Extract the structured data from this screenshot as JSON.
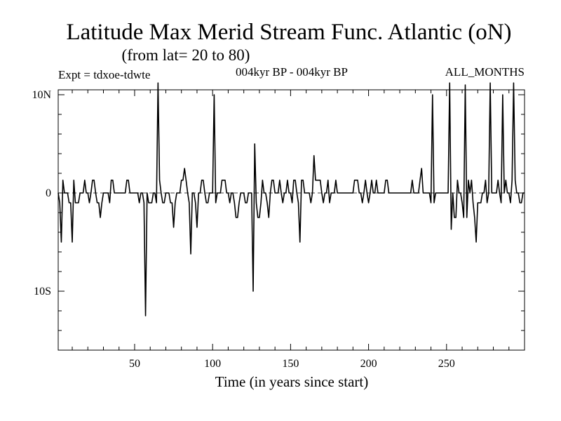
{
  "chart_data": {
    "type": "line",
    "title": "Latitude Max Merid Stream Func. Atlantic (oN)",
    "subtitle": "(from lat= 20 to 80)",
    "expt_label": "Expt = tdxoe-tdwte",
    "period_label": "004kyr BP - 004kyr BP",
    "months_label": "ALL_MONTHS",
    "xlabel": "Time (in years since start)",
    "ylabel": "",
    "xlim": [
      1,
      300
    ],
    "ylim": [
      -16,
      10.5
    ],
    "x_ticks": [
      {
        "value": 50,
        "label": "50"
      },
      {
        "value": 100,
        "label": "100"
      },
      {
        "value": 150,
        "label": "150"
      },
      {
        "value": 200,
        "label": "200"
      },
      {
        "value": 250,
        "label": "250"
      }
    ],
    "y_ticks": [
      {
        "value": 10,
        "label": "10N"
      },
      {
        "value": 0,
        "label": "0"
      },
      {
        "value": -10,
        "label": "10S"
      }
    ],
    "series": [
      {
        "name": "Latitude max",
        "points": [
          [
            1,
            0
          ],
          [
            2,
            -1
          ],
          [
            3,
            -5
          ],
          [
            4,
            1.3
          ],
          [
            5,
            0
          ],
          [
            6,
            0
          ],
          [
            7,
            0
          ],
          [
            8,
            -1
          ],
          [
            9,
            -1
          ],
          [
            10,
            -5
          ],
          [
            11,
            1.3
          ],
          [
            12,
            -1
          ],
          [
            13,
            -1
          ],
          [
            14,
            -1
          ],
          [
            15,
            0
          ],
          [
            16,
            0
          ],
          [
            17,
            0
          ],
          [
            18,
            1.3
          ],
          [
            19,
            0
          ],
          [
            20,
            0
          ],
          [
            21,
            -1
          ],
          [
            22,
            0
          ],
          [
            23,
            1.3
          ],
          [
            24,
            1.3
          ],
          [
            25,
            0
          ],
          [
            26,
            -1
          ],
          [
            27,
            -1
          ],
          [
            28,
            -2.5
          ],
          [
            29,
            -1
          ],
          [
            30,
            0
          ],
          [
            31,
            0
          ],
          [
            32,
            0
          ],
          [
            33,
            0
          ],
          [
            34,
            -1
          ],
          [
            35,
            1.3
          ],
          [
            36,
            1.3
          ],
          [
            37,
            0
          ],
          [
            38,
            0
          ],
          [
            39,
            0
          ],
          [
            40,
            0
          ],
          [
            41,
            0
          ],
          [
            42,
            0
          ],
          [
            43,
            0
          ],
          [
            44,
            0
          ],
          [
            45,
            1.3
          ],
          [
            46,
            1.3
          ],
          [
            47,
            0
          ],
          [
            48,
            0
          ],
          [
            49,
            0
          ],
          [
            50,
            0
          ],
          [
            51,
            0
          ],
          [
            52,
            0
          ],
          [
            53,
            -1
          ],
          [
            54,
            0
          ],
          [
            55,
            0
          ],
          [
            56,
            -1
          ],
          [
            57,
            -12.5
          ],
          [
            58,
            0
          ],
          [
            59,
            -1
          ],
          [
            60,
            -1
          ],
          [
            61,
            -1
          ],
          [
            62,
            0
          ],
          [
            63,
            0
          ],
          [
            64,
            -1
          ],
          [
            65,
            11.2
          ],
          [
            66,
            1.3
          ],
          [
            67,
            0
          ],
          [
            68,
            -1
          ],
          [
            69,
            -1
          ],
          [
            70,
            0
          ],
          [
            71,
            0
          ],
          [
            72,
            0
          ],
          [
            73,
            -1
          ],
          [
            74,
            -1
          ],
          [
            75,
            -3.5
          ],
          [
            76,
            -1
          ],
          [
            77,
            0
          ],
          [
            78,
            0
          ],
          [
            79,
            0
          ],
          [
            80,
            1.3
          ],
          [
            81,
            1.3
          ],
          [
            82,
            2.5
          ],
          [
            83,
            1.3
          ],
          [
            84,
            0
          ],
          [
            85,
            -1
          ],
          [
            86,
            -6.2
          ],
          [
            87,
            0
          ],
          [
            88,
            0
          ],
          [
            89,
            -1
          ],
          [
            90,
            -3.5
          ],
          [
            91,
            0
          ],
          [
            92,
            0
          ],
          [
            93,
            1.3
          ],
          [
            94,
            1.3
          ],
          [
            95,
            0
          ],
          [
            96,
            -1
          ],
          [
            97,
            -1
          ],
          [
            98,
            0
          ],
          [
            99,
            0
          ],
          [
            100,
            0
          ],
          [
            101,
            10
          ],
          [
            102,
            -1
          ],
          [
            103,
            0
          ],
          [
            104,
            0
          ],
          [
            105,
            0
          ],
          [
            106,
            1.3
          ],
          [
            107,
            1.3
          ],
          [
            108,
            1.3
          ],
          [
            109,
            0
          ],
          [
            110,
            0
          ],
          [
            111,
            -1
          ],
          [
            112,
            0
          ],
          [
            113,
            0
          ],
          [
            114,
            -1
          ],
          [
            115,
            -2.5
          ],
          [
            116,
            -2.5
          ],
          [
            117,
            -1
          ],
          [
            118,
            0
          ],
          [
            119,
            0
          ],
          [
            120,
            0
          ],
          [
            121,
            -1
          ],
          [
            122,
            -1
          ],
          [
            123,
            0
          ],
          [
            124,
            0
          ],
          [
            125,
            0
          ],
          [
            126,
            -10
          ],
          [
            127,
            5
          ],
          [
            128,
            -1
          ],
          [
            129,
            -2.5
          ],
          [
            130,
            -2.5
          ],
          [
            131,
            -1
          ],
          [
            132,
            1.3
          ],
          [
            133,
            0
          ],
          [
            134,
            0
          ],
          [
            135,
            -1
          ],
          [
            136,
            -2.5
          ],
          [
            137,
            0
          ],
          [
            138,
            1.3
          ],
          [
            139,
            1.3
          ],
          [
            140,
            0
          ],
          [
            141,
            0
          ],
          [
            142,
            0
          ],
          [
            143,
            1.3
          ],
          [
            144,
            0
          ],
          [
            145,
            -1
          ],
          [
            146,
            0
          ],
          [
            147,
            0
          ],
          [
            148,
            1.3
          ],
          [
            149,
            0
          ],
          [
            150,
            0
          ],
          [
            151,
            -1
          ],
          [
            152,
            1.3
          ],
          [
            153,
            1.3
          ],
          [
            154,
            0
          ],
          [
            155,
            -1
          ],
          [
            156,
            -5
          ],
          [
            157,
            1.3
          ],
          [
            158,
            1.3
          ],
          [
            159,
            0
          ],
          [
            160,
            0
          ],
          [
            161,
            0
          ],
          [
            162,
            0
          ],
          [
            163,
            -1
          ],
          [
            164,
            0
          ],
          [
            165,
            3.8
          ],
          [
            166,
            1.3
          ],
          [
            167,
            1.3
          ],
          [
            168,
            1.3
          ],
          [
            169,
            1.3
          ],
          [
            170,
            0
          ],
          [
            171,
            -1
          ],
          [
            172,
            0
          ],
          [
            173,
            0
          ],
          [
            174,
            1.3
          ],
          [
            175,
            -1
          ],
          [
            176,
            0
          ],
          [
            177,
            0
          ],
          [
            178,
            0
          ],
          [
            179,
            1.3
          ],
          [
            180,
            0
          ],
          [
            181,
            0
          ],
          [
            182,
            0
          ],
          [
            183,
            0
          ],
          [
            184,
            0
          ],
          [
            185,
            0
          ],
          [
            186,
            0
          ],
          [
            187,
            0
          ],
          [
            188,
            0
          ],
          [
            189,
            0
          ],
          [
            190,
            0
          ],
          [
            191,
            1.3
          ],
          [
            192,
            1.3
          ],
          [
            193,
            1.3
          ],
          [
            194,
            0
          ],
          [
            195,
            0
          ],
          [
            196,
            -1
          ],
          [
            197,
            0
          ],
          [
            198,
            1.3
          ],
          [
            199,
            0
          ],
          [
            200,
            -1
          ],
          [
            201,
            0
          ],
          [
            202,
            1.3
          ],
          [
            203,
            0
          ],
          [
            204,
            0
          ],
          [
            205,
            1.3
          ],
          [
            206,
            0
          ],
          [
            207,
            0
          ],
          [
            208,
            0
          ],
          [
            209,
            0
          ],
          [
            210,
            0
          ],
          [
            211,
            1.3
          ],
          [
            212,
            1.3
          ],
          [
            213,
            0
          ],
          [
            214,
            0
          ],
          [
            215,
            0
          ],
          [
            216,
            0
          ],
          [
            217,
            0
          ],
          [
            218,
            0
          ],
          [
            219,
            0
          ],
          [
            220,
            0
          ],
          [
            221,
            0
          ],
          [
            222,
            0
          ],
          [
            223,
            0
          ],
          [
            224,
            0
          ],
          [
            225,
            0
          ],
          [
            226,
            0
          ],
          [
            227,
            0
          ],
          [
            228,
            1.3
          ],
          [
            229,
            0
          ],
          [
            230,
            0
          ],
          [
            231,
            0
          ],
          [
            232,
            0
          ],
          [
            233,
            1.3
          ],
          [
            234,
            2.5
          ],
          [
            235,
            0
          ],
          [
            236,
            0
          ],
          [
            237,
            0
          ],
          [
            238,
            0
          ],
          [
            239,
            0
          ],
          [
            240,
            -1
          ],
          [
            241,
            10
          ],
          [
            242,
            -1
          ],
          [
            243,
            0
          ],
          [
            244,
            0
          ],
          [
            245,
            0
          ],
          [
            246,
            0
          ],
          [
            247,
            0
          ],
          [
            248,
            0
          ],
          [
            249,
            0
          ],
          [
            250,
            0
          ],
          [
            251,
            0
          ],
          [
            252,
            11.2
          ],
          [
            253,
            -3.7
          ],
          [
            254,
            0
          ],
          [
            255,
            -2.5
          ],
          [
            256,
            -2.5
          ],
          [
            257,
            1.3
          ],
          [
            258,
            0
          ],
          [
            259,
            0
          ],
          [
            260,
            -1
          ],
          [
            261,
            -2.5
          ],
          [
            262,
            11
          ],
          [
            263,
            -2.5
          ],
          [
            264,
            1.3
          ],
          [
            265,
            0
          ],
          [
            266,
            1.3
          ],
          [
            267,
            -1
          ],
          [
            268,
            -2.5
          ],
          [
            269,
            -5
          ],
          [
            270,
            -1
          ],
          [
            271,
            -1
          ],
          [
            272,
            -1
          ],
          [
            273,
            0
          ],
          [
            274,
            0
          ],
          [
            275,
            1.3
          ],
          [
            276,
            -1
          ],
          [
            277,
            0
          ],
          [
            278,
            11.2
          ],
          [
            279,
            0
          ],
          [
            280,
            0
          ],
          [
            281,
            0
          ],
          [
            282,
            0
          ],
          [
            283,
            1.3
          ],
          [
            284,
            0
          ],
          [
            285,
            -1
          ],
          [
            286,
            10
          ],
          [
            287,
            0
          ],
          [
            288,
            1.3
          ],
          [
            289,
            0
          ],
          [
            290,
            0
          ],
          [
            291,
            -1
          ],
          [
            292,
            1.3
          ],
          [
            293,
            11.2
          ],
          [
            294,
            1.3
          ],
          [
            295,
            0
          ],
          [
            296,
            0
          ],
          [
            297,
            -1
          ],
          [
            298,
            -1
          ],
          [
            299,
            0
          ],
          [
            300,
            0
          ]
        ]
      }
    ]
  }
}
